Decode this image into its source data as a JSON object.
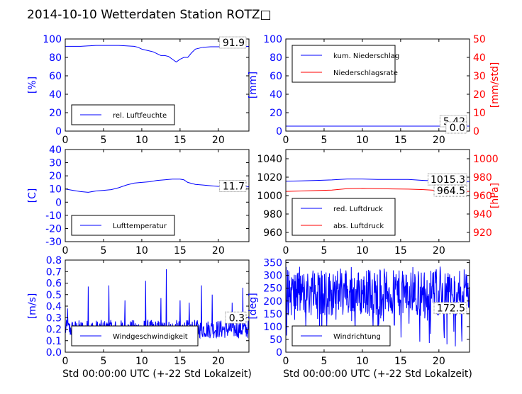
{
  "title": "2014-10-10 Wetterdaten Station ROTZ□",
  "colors": {
    "blue": "#0000ff",
    "red": "#ff0000",
    "black": "#000000"
  },
  "chart_data": [
    {
      "type": "line",
      "panel": "humidity",
      "ylabel": "[%]",
      "ylim": [
        0,
        100
      ],
      "yticks": [
        0,
        20,
        40,
        60,
        80,
        100
      ],
      "xlim": [
        0,
        24
      ],
      "xticks": [
        0,
        5,
        10,
        15,
        20
      ],
      "grid": false,
      "legend_position": "lower-left",
      "series": [
        {
          "name": "rel. Luftfeuchte",
          "color": "#0000ff",
          "x": [
            0,
            1,
            2,
            3,
            4,
            5,
            6,
            7,
            8,
            9,
            9.5,
            10,
            10.5,
            11,
            11.5,
            12,
            12.5,
            13,
            13.5,
            14,
            14.5,
            15,
            15.5,
            16,
            16.5,
            17,
            18,
            19,
            20,
            21,
            22,
            23,
            24
          ],
          "y": [
            92,
            92,
            92,
            92.5,
            93,
            93,
            93,
            93,
            92.5,
            92,
            91,
            89,
            88,
            87,
            86,
            84,
            82,
            82,
            81,
            78,
            75,
            78,
            80,
            80,
            85,
            89,
            91,
            91.5,
            91.5,
            91.9,
            91.9,
            91.9,
            91.9
          ]
        }
      ],
      "value_annotations": [
        {
          "text": "91.9",
          "color": "#000000"
        }
      ]
    },
    {
      "type": "line",
      "panel": "precipitation",
      "ylabel": "[mm]",
      "ylim": [
        0,
        100
      ],
      "yticks": [
        0,
        20,
        40,
        60,
        80,
        100
      ],
      "ylabel_right": "[mm/std]",
      "ylim_right": [
        0,
        50
      ],
      "yticks_right": [
        0,
        10,
        20,
        30,
        40,
        50
      ],
      "xlim": [
        0,
        24
      ],
      "xticks": [
        0,
        5,
        10,
        15,
        20
      ],
      "grid": false,
      "legend_position": "upper-left",
      "series": [
        {
          "name": "kum. Niederschlag",
          "color": "#0000ff",
          "axis": "left",
          "x": [
            0,
            24
          ],
          "y": [
            5.42,
            5.42
          ]
        },
        {
          "name": "Niederschlagsrate",
          "color": "#ff0000",
          "axis": "right",
          "x": [
            0,
            24
          ],
          "y": [
            0.0,
            0.0
          ]
        }
      ],
      "value_annotations": [
        {
          "text": "5.42",
          "color": "#000000"
        },
        {
          "text": "0.0",
          "color": "#000000"
        }
      ]
    },
    {
      "type": "line",
      "panel": "temperature",
      "ylabel": "[C]",
      "ylim": [
        -30,
        40
      ],
      "yticks": [
        -30,
        -20,
        -10,
        0,
        10,
        20,
        30,
        40
      ],
      "xlim": [
        0,
        24
      ],
      "xticks": [
        0,
        5,
        10,
        15,
        20
      ],
      "grid": false,
      "legend_position": "lower-left",
      "series": [
        {
          "name": "Lufttemperatur",
          "color": "#0000ff",
          "x": [
            0,
            1,
            2,
            3,
            4,
            5,
            6,
            7,
            8,
            9,
            10,
            11,
            12,
            13,
            14,
            15,
            15.5,
            16,
            17,
            18,
            19,
            20,
            21,
            22,
            23,
            24
          ],
          "y": [
            10,
            9,
            8,
            7.5,
            8.5,
            9,
            9.5,
            11,
            13,
            14.5,
            15,
            15.5,
            16.5,
            17,
            17.5,
            17.5,
            17,
            15,
            13.5,
            13,
            12.5,
            12,
            11.8,
            11.7,
            11.7,
            11.7
          ]
        }
      ],
      "value_annotations": [
        {
          "text": "11.7",
          "color": "#000000"
        }
      ]
    },
    {
      "type": "line",
      "panel": "pressure",
      "ylabel": "",
      "ylim": [
        950,
        1050
      ],
      "yticks": [
        960,
        980,
        1000,
        1020,
        1040
      ],
      "ylabel_right": "[hPa]",
      "ylim_right": [
        910,
        1010
      ],
      "yticks_right": [
        920,
        940,
        960,
        980,
        1000
      ],
      "xlim": [
        0,
        24
      ],
      "xticks": [
        0,
        5,
        10,
        15,
        20
      ],
      "grid": false,
      "legend_position": "lower-left",
      "series": [
        {
          "name": "red. Luftdruck",
          "color": "#0000ff",
          "axis": "left",
          "x": [
            0,
            2,
            4,
            6,
            8,
            10,
            12,
            14,
            16,
            18,
            20,
            22,
            24
          ],
          "y": [
            1015.5,
            1016,
            1016.5,
            1017,
            1018,
            1018,
            1017.5,
            1017.5,
            1017.5,
            1016.5,
            1015.8,
            1015.3,
            1015.3
          ]
        },
        {
          "name": "abs. Luftdruck",
          "color": "#ff0000",
          "axis": "right",
          "x": [
            0,
            2,
            4,
            6,
            8,
            10,
            12,
            14,
            16,
            18,
            20,
            22,
            24
          ],
          "y": [
            964.5,
            965,
            965.5,
            966,
            967.5,
            967.8,
            967.5,
            967.2,
            967,
            966.5,
            965.5,
            964.8,
            964.5
          ]
        }
      ],
      "value_annotations": [
        {
          "text": "1015.3",
          "color": "#000000"
        },
        {
          "text": "964.5",
          "color": "#000000"
        }
      ]
    },
    {
      "type": "line",
      "panel": "wind_speed",
      "ylabel": "[m/s]",
      "ylim": [
        0,
        0.8
      ],
      "yticks": [
        0.0,
        0.1,
        0.2,
        0.3,
        0.4,
        0.5,
        0.6,
        0.7,
        0.8
      ],
      "xlim": [
        0,
        24
      ],
      "xticks": [
        0,
        5,
        10,
        15,
        20
      ],
      "xlabel": "Std 00:00:00 UTC (+-22 Std Lokalzeit)",
      "grid": false,
      "legend_position": "lower-left",
      "series": [
        {
          "name": "Windgeschwindigkeit",
          "color": "#0000ff",
          "x_step": 0.05,
          "y_base": 0.2,
          "y_noise": 0.08
        }
      ],
      "peaks": [
        {
          "x": 0.3,
          "y": 0.38
        },
        {
          "x": 3.0,
          "y": 0.57
        },
        {
          "x": 5.7,
          "y": 0.58
        },
        {
          "x": 7.8,
          "y": 0.45
        },
        {
          "x": 10.5,
          "y": 0.62
        },
        {
          "x": 12.5,
          "y": 0.47
        },
        {
          "x": 13.2,
          "y": 0.72
        },
        {
          "x": 15.0,
          "y": 0.45
        },
        {
          "x": 16.2,
          "y": 0.43
        },
        {
          "x": 17.8,
          "y": 0.58
        },
        {
          "x": 19.2,
          "y": 0.5
        },
        {
          "x": 21.8,
          "y": 0.43
        },
        {
          "x": 23.2,
          "y": 0.56
        }
      ],
      "value_annotations": [
        {
          "text": "0.3",
          "color": "#000000"
        }
      ]
    },
    {
      "type": "line",
      "panel": "wind_direction",
      "ylabel": "[deg]",
      "ylim": [
        0,
        360
      ],
      "yticks": [
        0,
        50,
        100,
        150,
        200,
        250,
        300,
        350
      ],
      "xlim": [
        0,
        24
      ],
      "xticks": [
        0,
        5,
        10,
        15,
        20
      ],
      "xlabel": "Std 00:00:00 UTC (+-22 Std Lokalzeit)",
      "grid": false,
      "legend_position": "lower-left",
      "series": [
        {
          "name": "Windrichtung",
          "color": "#0000ff",
          "x_step": 0.05,
          "y_base": 230,
          "y_noise": 90
        }
      ],
      "value_annotations": [
        {
          "text": "172.5",
          "color": "#000000"
        }
      ]
    }
  ]
}
